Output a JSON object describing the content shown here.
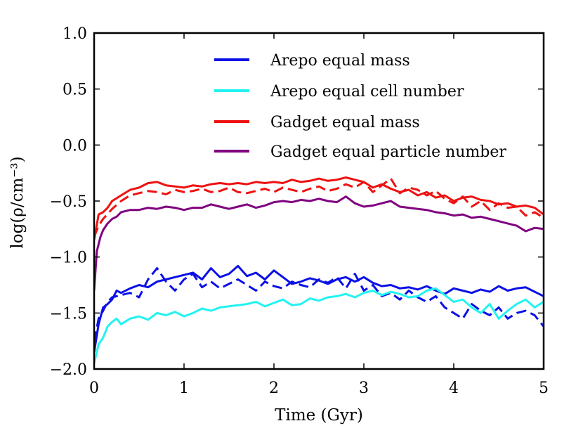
{
  "chart_data": {
    "type": "line",
    "title": "",
    "xlabel": "Time (Gyr)",
    "ylabel": "log(ρ/cm⁻³)",
    "xlim": [
      0,
      5
    ],
    "ylim": [
      -2.0,
      1.0
    ],
    "xticks": [
      0,
      1,
      2,
      3,
      4,
      5
    ],
    "xtick_labels": [
      "0",
      "1",
      "2",
      "3",
      "4",
      "5"
    ],
    "yticks": [
      1.0,
      0.5,
      0.0,
      -0.5,
      -1.0,
      -1.5,
      -2.0
    ],
    "ytick_labels": [
      "1.0",
      "0.5",
      "0.0",
      "−0.5",
      "−1.0",
      "−1.5",
      "−2.0"
    ],
    "grid": false,
    "legend_position": "top-right",
    "legend": [
      {
        "name": "Arepo equal mass",
        "color": "#0b10e6"
      },
      {
        "name": "Arepo equal cell number",
        "color": "#22f3f2"
      },
      {
        "name": "Gadget equal mass",
        "color": "#ee1111"
      },
      {
        "name": "Gadget equal particle number",
        "color": "#800080"
      }
    ],
    "series": [
      {
        "name": "Gadget equal mass (solid)",
        "color": "#ee1111",
        "dash": "solid",
        "x": [
          0.0,
          0.05,
          0.1,
          0.15,
          0.2,
          0.3,
          0.4,
          0.5,
          0.6,
          0.7,
          0.8,
          0.9,
          1.0,
          1.1,
          1.2,
          1.3,
          1.4,
          1.5,
          1.6,
          1.7,
          1.8,
          1.9,
          2.0,
          2.1,
          2.2,
          2.3,
          2.4,
          2.5,
          2.6,
          2.7,
          2.8,
          2.9,
          3.0
        ],
        "y": [
          -0.85,
          -0.62,
          -0.6,
          -0.56,
          -0.5,
          -0.45,
          -0.4,
          -0.38,
          -0.34,
          -0.33,
          -0.36,
          -0.37,
          -0.38,
          -0.36,
          -0.37,
          -0.35,
          -0.34,
          -0.35,
          -0.34,
          -0.35,
          -0.33,
          -0.34,
          -0.33,
          -0.34,
          -0.31,
          -0.33,
          -0.32,
          -0.3,
          -0.32,
          -0.31,
          -0.29,
          -0.31,
          -0.33
        ]
      },
      {
        "name": "Gadget equal mass (dashed)",
        "color": "#ee1111",
        "dash": "dashed",
        "x": [
          0.0,
          0.05,
          0.1,
          0.2,
          0.3,
          0.4,
          0.5,
          0.6,
          0.7,
          0.8,
          0.9,
          1.0,
          1.1,
          1.2,
          1.3,
          1.4,
          1.5,
          1.6,
          1.7,
          1.8,
          1.9,
          2.0,
          2.1,
          2.2,
          2.3,
          2.4,
          2.5,
          2.6,
          2.7,
          2.8,
          2.9,
          3.0,
          3.1,
          3.2,
          3.3,
          3.4,
          3.5,
          3.6,
          3.7,
          3.8,
          3.9,
          4.0,
          4.1,
          4.2,
          4.3,
          4.4,
          4.5,
          4.6,
          4.7,
          4.8,
          4.9,
          5.0
        ],
        "y": [
          -0.82,
          -0.72,
          -0.66,
          -0.57,
          -0.5,
          -0.45,
          -0.43,
          -0.41,
          -0.42,
          -0.44,
          -0.4,
          -0.42,
          -0.41,
          -0.39,
          -0.42,
          -0.41,
          -0.38,
          -0.42,
          -0.43,
          -0.41,
          -0.39,
          -0.42,
          -0.38,
          -0.4,
          -0.42,
          -0.39,
          -0.37,
          -0.41,
          -0.39,
          -0.35,
          -0.38,
          -0.33,
          -0.42,
          -0.36,
          -0.3,
          -0.43,
          -0.38,
          -0.4,
          -0.45,
          -0.41,
          -0.48,
          -0.52,
          -0.46,
          -0.55,
          -0.5,
          -0.58,
          -0.52,
          -0.56,
          -0.55,
          -0.63,
          -0.6,
          -0.65
        ]
      },
      {
        "name": "Gadget equal mass (tail)",
        "color": "#ee1111",
        "dash": "solid",
        "x": [
          3.0,
          3.1,
          3.2,
          3.3,
          3.4,
          3.5,
          3.6,
          3.7,
          3.8,
          3.9,
          4.0,
          4.1,
          4.2,
          4.3,
          4.4,
          4.5,
          4.6,
          4.7,
          4.8,
          4.9,
          5.0
        ],
        "y": [
          -0.33,
          -0.38,
          -0.35,
          -0.39,
          -0.42,
          -0.4,
          -0.45,
          -0.42,
          -0.47,
          -0.45,
          -0.5,
          -0.47,
          -0.46,
          -0.49,
          -0.5,
          -0.53,
          -0.52,
          -0.55,
          -0.54,
          -0.56,
          -0.62
        ]
      },
      {
        "name": "Gadget equal particle number",
        "color": "#800080",
        "dash": "solid",
        "x": [
          0.0,
          0.03,
          0.07,
          0.1,
          0.15,
          0.2,
          0.25,
          0.3,
          0.4,
          0.5,
          0.6,
          0.7,
          0.8,
          0.9,
          1.0,
          1.1,
          1.2,
          1.3,
          1.4,
          1.5,
          1.6,
          1.7,
          1.8,
          1.9,
          2.0,
          2.1,
          2.2,
          2.3,
          2.4,
          2.5,
          2.6,
          2.7,
          2.8,
          2.9,
          3.0,
          3.1,
          3.2,
          3.3,
          3.4,
          3.5,
          3.6,
          3.7,
          3.8,
          3.9,
          4.0,
          4.1,
          4.2,
          4.3,
          4.4,
          4.5,
          4.6,
          4.7,
          4.8,
          4.9,
          5.0
        ],
        "y": [
          -1.3,
          -0.95,
          -0.82,
          -0.76,
          -0.7,
          -0.66,
          -0.64,
          -0.6,
          -0.58,
          -0.58,
          -0.56,
          -0.57,
          -0.55,
          -0.56,
          -0.58,
          -0.56,
          -0.56,
          -0.53,
          -0.55,
          -0.57,
          -0.55,
          -0.53,
          -0.56,
          -0.54,
          -0.51,
          -0.5,
          -0.51,
          -0.49,
          -0.5,
          -0.48,
          -0.5,
          -0.51,
          -0.46,
          -0.52,
          -0.55,
          -0.54,
          -0.52,
          -0.5,
          -0.55,
          -0.56,
          -0.57,
          -0.58,
          -0.6,
          -0.61,
          -0.63,
          -0.62,
          -0.65,
          -0.64,
          -0.66,
          -0.68,
          -0.7,
          -0.72,
          -0.77,
          -0.74,
          -0.75
        ]
      },
      {
        "name": "Arepo equal mass (solid)",
        "color": "#0b10e6",
        "dash": "solid",
        "x": [
          0.0,
          0.05,
          0.1,
          0.15,
          0.2,
          0.25,
          0.3,
          0.4,
          0.5,
          0.6,
          0.7,
          0.8,
          0.9,
          1.0,
          1.1,
          1.2,
          1.3,
          1.4,
          1.5,
          1.6,
          1.7,
          1.8,
          1.9,
          2.0,
          2.1,
          2.2,
          2.3,
          2.4,
          2.5,
          2.6,
          2.7,
          2.8,
          2.9,
          3.0,
          3.1,
          3.2,
          3.3,
          3.4,
          3.5,
          3.6,
          3.7,
          3.8,
          3.9,
          4.0,
          4.1,
          4.2,
          4.3,
          4.4,
          4.5,
          4.6,
          4.7,
          4.8,
          4.9,
          5.0
        ],
        "y": [
          -1.85,
          -1.6,
          -1.45,
          -1.42,
          -1.38,
          -1.3,
          -1.32,
          -1.28,
          -1.25,
          -1.27,
          -1.22,
          -1.2,
          -1.18,
          -1.16,
          -1.14,
          -1.2,
          -1.1,
          -1.18,
          -1.15,
          -1.08,
          -1.17,
          -1.14,
          -1.2,
          -1.12,
          -1.18,
          -1.24,
          -1.22,
          -1.19,
          -1.21,
          -1.24,
          -1.2,
          -1.18,
          -1.22,
          -1.18,
          -1.23,
          -1.26,
          -1.25,
          -1.28,
          -1.27,
          -1.29,
          -1.26,
          -1.3,
          -1.33,
          -1.28,
          -1.3,
          -1.32,
          -1.29,
          -1.31,
          -1.26,
          -1.3,
          -1.28,
          -1.27,
          -1.31,
          -1.35
        ]
      },
      {
        "name": "Arepo equal mass (dashed)",
        "color": "#0b10e6",
        "dash": "dashed",
        "x": [
          0.0,
          0.05,
          0.1,
          0.15,
          0.2,
          0.3,
          0.4,
          0.5,
          0.6,
          0.7,
          0.8,
          0.9,
          1.0,
          1.1,
          1.2,
          1.3,
          1.4,
          1.5,
          1.6,
          1.7,
          1.8,
          1.9,
          2.0,
          2.1,
          2.2,
          2.3,
          2.4,
          2.5,
          2.6,
          2.7,
          2.8,
          2.9,
          3.0,
          3.1,
          3.2,
          3.3,
          3.4,
          3.5,
          3.6,
          3.7,
          3.8,
          3.9,
          4.0,
          4.1,
          4.2,
          4.3,
          4.4,
          4.5,
          4.6,
          4.7,
          4.8,
          4.9,
          5.0
        ],
        "y": [
          -1.75,
          -1.55,
          -1.48,
          -1.4,
          -1.36,
          -1.34,
          -1.32,
          -1.36,
          -1.2,
          -1.1,
          -1.22,
          -1.3,
          -1.2,
          -1.15,
          -1.27,
          -1.22,
          -1.28,
          -1.24,
          -1.2,
          -1.25,
          -1.3,
          -1.22,
          -1.26,
          -1.28,
          -1.22,
          -1.25,
          -1.27,
          -1.2,
          -1.23,
          -1.18,
          -1.28,
          -1.15,
          -1.3,
          -1.25,
          -1.35,
          -1.32,
          -1.38,
          -1.3,
          -1.36,
          -1.4,
          -1.35,
          -1.45,
          -1.5,
          -1.55,
          -1.42,
          -1.48,
          -1.52,
          -1.45,
          -1.55,
          -1.5,
          -1.48,
          -1.52,
          -1.62
        ]
      },
      {
        "name": "Arepo equal cell number",
        "color": "#22f3f2",
        "dash": "solid",
        "x": [
          0.0,
          0.05,
          0.1,
          0.15,
          0.2,
          0.25,
          0.3,
          0.4,
          0.5,
          0.6,
          0.7,
          0.8,
          0.9,
          1.0,
          1.1,
          1.2,
          1.3,
          1.4,
          1.5,
          1.6,
          1.7,
          1.8,
          1.9,
          2.0,
          2.1,
          2.2,
          2.3,
          2.4,
          2.5,
          2.6,
          2.7,
          2.8,
          2.9,
          3.0,
          3.1,
          3.2,
          3.3,
          3.4,
          3.5,
          3.6,
          3.7,
          3.8,
          3.9,
          4.0,
          4.1,
          4.2,
          4.3,
          4.4,
          4.5,
          4.6,
          4.7,
          4.8,
          4.9,
          5.0
        ],
        "y": [
          -1.95,
          -1.78,
          -1.72,
          -1.62,
          -1.58,
          -1.55,
          -1.6,
          -1.55,
          -1.53,
          -1.56,
          -1.5,
          -1.52,
          -1.49,
          -1.53,
          -1.5,
          -1.46,
          -1.48,
          -1.45,
          -1.44,
          -1.43,
          -1.42,
          -1.4,
          -1.44,
          -1.41,
          -1.38,
          -1.43,
          -1.42,
          -1.37,
          -1.39,
          -1.36,
          -1.35,
          -1.33,
          -1.36,
          -1.32,
          -1.3,
          -1.34,
          -1.31,
          -1.33,
          -1.36,
          -1.35,
          -1.3,
          -1.28,
          -1.34,
          -1.4,
          -1.38,
          -1.45,
          -1.5,
          -1.42,
          -1.55,
          -1.48,
          -1.42,
          -1.38,
          -1.45,
          -1.4
        ]
      }
    ]
  }
}
